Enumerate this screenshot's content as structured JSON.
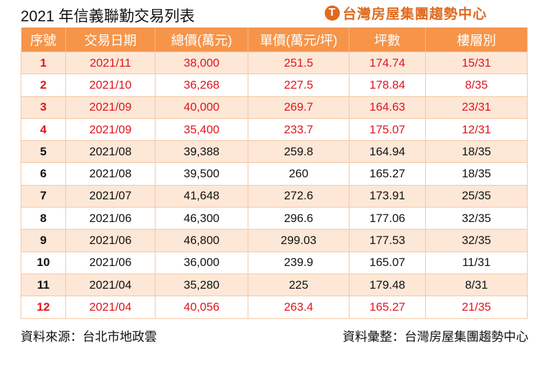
{
  "title": "2021 年信義聯勤交易列表",
  "logo": "台灣房屋集團趨勢中心",
  "headers": [
    "序號",
    "交易日期",
    "總價(萬元)",
    "單價(萬元/坪)",
    "坪數",
    "樓層別"
  ],
  "rows": [
    [
      "1",
      "2021/11",
      "38,000",
      "251.5",
      "174.74",
      "15/31"
    ],
    [
      "2",
      "2021/10",
      "36,268",
      "227.5",
      "178.84",
      "8/35"
    ],
    [
      "3",
      "2021/09",
      "40,000",
      "269.7",
      "164.63",
      "23/31"
    ],
    [
      "4",
      "2021/09",
      "35,400",
      "233.7",
      "175.07",
      "12/31"
    ],
    [
      "5",
      "2021/08",
      "39,388",
      "259.8",
      "164.94",
      "18/35"
    ],
    [
      "6",
      "2021/08",
      "39,500",
      "260",
      "165.27",
      "18/35"
    ],
    [
      "7",
      "2021/07",
      "41,648",
      "272.6",
      "173.91",
      "25/35"
    ],
    [
      "8",
      "2021/06",
      "46,300",
      "296.6",
      "177.06",
      "32/35"
    ],
    [
      "9",
      "2021/06",
      "46,800",
      "299.03",
      "177.53",
      "32/35"
    ],
    [
      "10",
      "2021/06",
      "36,000",
      "239.9",
      "165.07",
      "11/31"
    ],
    [
      "11",
      "2021/04",
      "35,280",
      "225",
      "179.48",
      "8/31"
    ],
    [
      "12",
      "2021/04",
      "40,056",
      "263.4",
      "165.27",
      "21/35"
    ]
  ],
  "red_rows": [
    0,
    1,
    2,
    3,
    11
  ],
  "source": "資料來源：台北市地政雲",
  "compiled": "資料彙整：台灣房屋集團趨勢中心"
}
